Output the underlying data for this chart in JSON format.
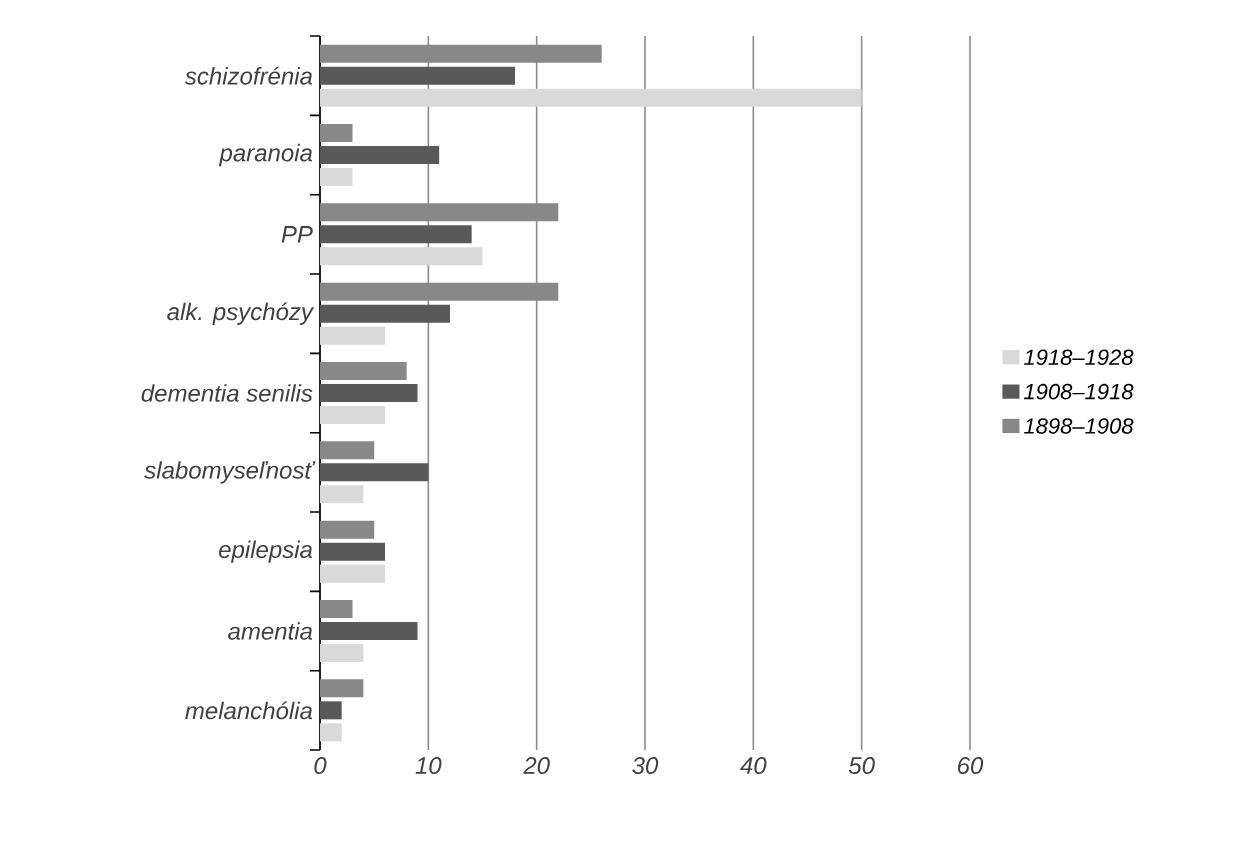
{
  "chart_data": {
    "type": "bar",
    "orientation": "horizontal",
    "categories": [
      "schizofrénia",
      "paranoia",
      "PP",
      "alk. psychózy",
      "dementia senilis",
      "slabomyseľnosť",
      "epilepsia",
      "amentia",
      "melanchólia"
    ],
    "series": [
      {
        "name": "1918–1928",
        "color": "#d9d9d9",
        "values": [
          50,
          3,
          15,
          6,
          6,
          4,
          6,
          4,
          2
        ]
      },
      {
        "name": "1908–1918",
        "color": "#595959",
        "values": [
          18,
          11,
          14,
          12,
          9,
          10,
          6,
          9,
          2
        ]
      },
      {
        "name": "1898–1908",
        "color": "#888888",
        "values": [
          26,
          3,
          22,
          22,
          8,
          5,
          5,
          3,
          4
        ]
      }
    ],
    "xlim": [
      0,
      60
    ],
    "xticks": [
      0,
      10,
      20,
      30,
      40,
      50,
      60
    ],
    "grid": "x",
    "legend": "right"
  }
}
